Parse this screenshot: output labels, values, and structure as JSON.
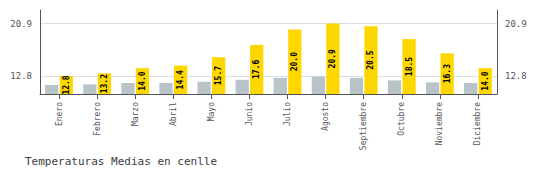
{
  "chart_data": {
    "type": "bar",
    "title": "Temperaturas Medias en cenlle",
    "categories": [
      "Enero",
      "Febrero",
      "Marzo",
      "Abril",
      "Mayo",
      "Junio",
      "Julio",
      "Agosto",
      "Septiembre",
      "Octubre",
      "Noviembre",
      "Diciembre"
    ],
    "series": [
      {
        "color": "#B8C4C8",
        "values": [
          11.4,
          11.5,
          11.7,
          11.7,
          11.9,
          12.2,
          12.5,
          12.7,
          12.5,
          12.1,
          11.8,
          11.7
        ]
      },
      {
        "color": "#FFD700",
        "values": [
          12.8,
          13.2,
          14.0,
          14.4,
          15.7,
          17.6,
          20.0,
          20.9,
          20.5,
          18.5,
          16.3,
          14.0
        ],
        "data_labels": true,
        "value_labels": [
          "12.8",
          "13.2",
          "14.0",
          "14.4",
          "15.7",
          "17.6",
          "20.0",
          "20.9",
          "20.5",
          "18.5",
          "16.3",
          "14.0"
        ]
      }
    ],
    "ylim": [
      10.0,
      23.0
    ],
    "yticks": [
      12.8,
      20.9
    ],
    "y2lim": [
      10.0,
      23.0
    ],
    "y2ticks": [
      12.8,
      20.9
    ],
    "grid": true
  }
}
